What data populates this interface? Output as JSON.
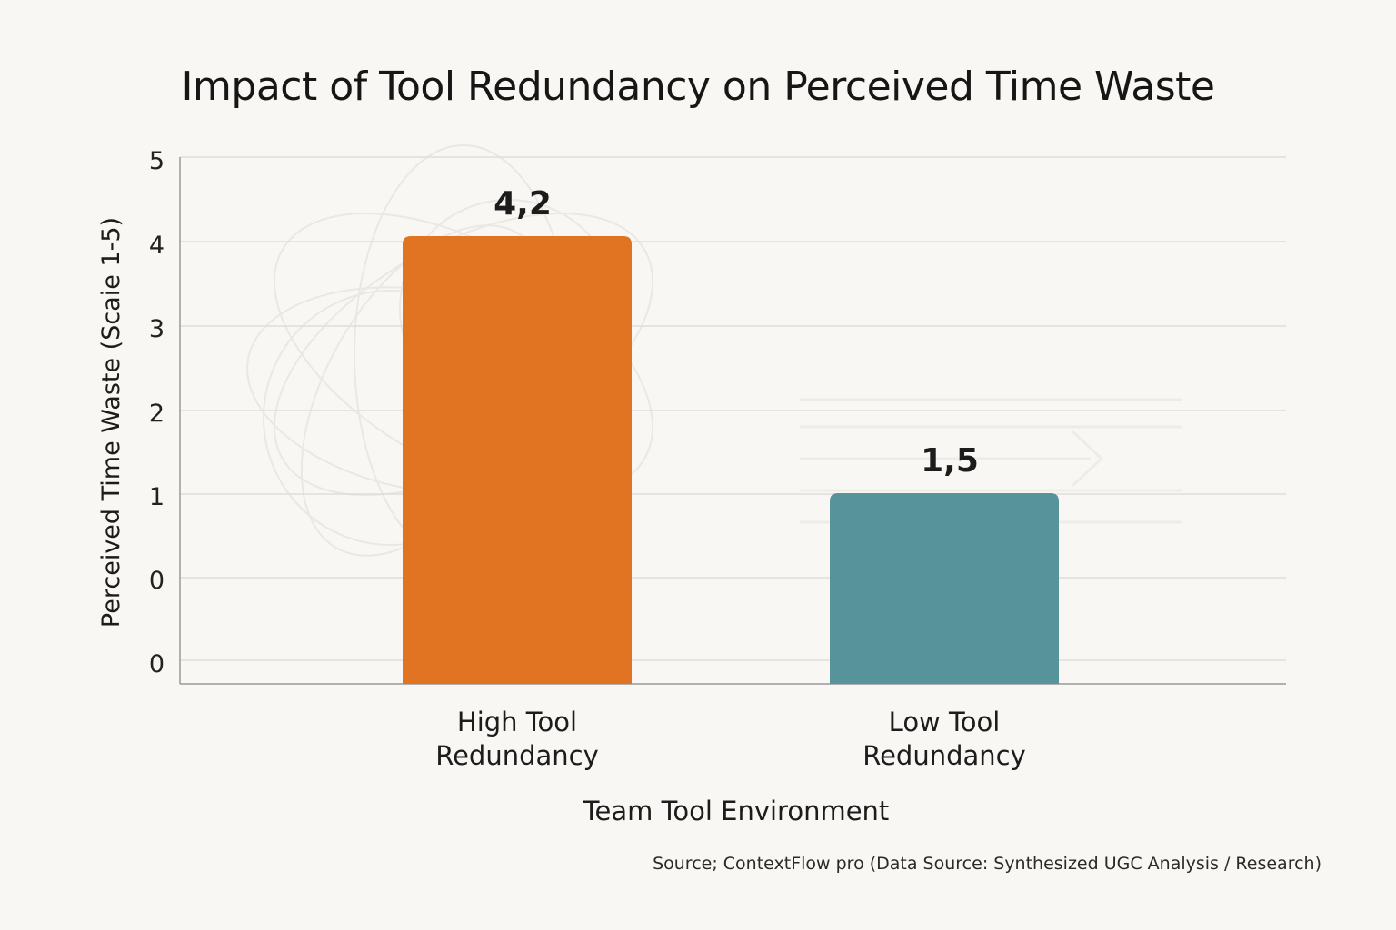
{
  "chart_data": {
    "type": "bar",
    "title": "Impact of Tool Redundancy on Perceived Time Waste",
    "xlabel": "Team Tool Environment",
    "ylabel": "Perceived Time Waste (Scaie 1-5)",
    "y_tick_labels": [
      "5",
      "4",
      "3",
      "2",
      "1",
      "0",
      "0"
    ],
    "ylim": [
      0,
      5
    ],
    "categories": [
      "High Tool\nRedundancy",
      "Low Tool\nRedundancy"
    ],
    "values": [
      4.2,
      1.5
    ],
    "data_labels": [
      "4,2",
      "1,5"
    ],
    "colors": [
      "#e07422",
      "#56939a"
    ],
    "grid": true,
    "legend": "none"
  },
  "source": "Source; ContextFlow pro (Data Source: Synthesized UGC Analysis / Research)"
}
